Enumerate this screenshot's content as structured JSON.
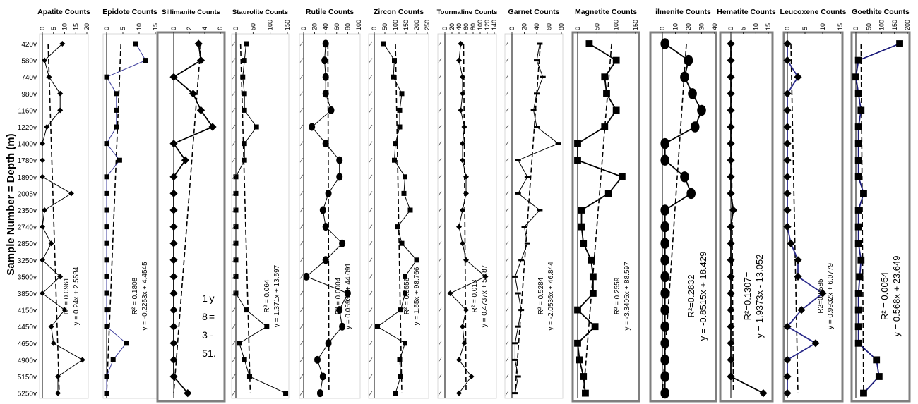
{
  "figure": {
    "ylabel": "Sample Number = Depth (m)",
    "samples": [
      "420v",
      "580v",
      "740v",
      "980v",
      "1160v",
      "1220v",
      "1400v",
      "1780v",
      "1890v",
      "2005v",
      "2350v",
      "2740v",
      "2850v",
      "3250v",
      "3500v",
      "3850v",
      "4150v",
      "4450v",
      "4650v",
      "4900v",
      "5150v",
      "5250v"
    ]
  },
  "chart_data": [
    {
      "type": "line",
      "title": "Apatite Counts",
      "xlim": [
        0,
        20
      ],
      "ticks": [
        "0",
        "5",
        "10",
        "15",
        "20"
      ],
      "values": [
        9,
        1,
        3,
        8,
        8,
        2,
        0,
        0,
        0,
        13,
        1,
        0,
        4,
        0,
        8,
        0,
        10,
        4,
        5,
        18,
        7,
        7
      ],
      "trend": {
        "x1": 2.58,
        "x2": 7.6
      },
      "equation": "y = 0.24x + 2.5584",
      "r2": "R² = 0.0961",
      "color": "#000000",
      "marker": "diamond",
      "boxed": false
    },
    {
      "type": "line",
      "title": "Epidote Counts",
      "xlim": [
        0,
        15
      ],
      "ticks": [
        "0",
        "5",
        "10",
        "15"
      ],
      "values": [
        9,
        12,
        0,
        3,
        3,
        3,
        0,
        4,
        0,
        0,
        0,
        0,
        0,
        0,
        0,
        0,
        0,
        0,
        6,
        2,
        0,
        0
      ],
      "trend": {
        "x1": 4.4,
        "x2": 0.0
      },
      "equation": "y = -0.2253x + 4.4545",
      "r2": "R² = 0.1808",
      "color": "#3a3a9a",
      "marker": "square",
      "boxed": false
    },
    {
      "type": "line",
      "title": "Sillimanite Counts",
      "xlim": [
        0,
        6
      ],
      "ticks": [
        "0",
        "2",
        "4",
        "6"
      ],
      "values": [
        3.2,
        3.5,
        0,
        2.5,
        3.5,
        5,
        0,
        1.5,
        0,
        0,
        0,
        0,
        0,
        0,
        0,
        0,
        0,
        0,
        0,
        0,
        0,
        1.8
      ],
      "trend": {
        "x1": 3.5,
        "x2": 0.0
      },
      "equation": "",
      "r2": "",
      "color": "#000000",
      "marker": "diamond",
      "boxed": true,
      "eqFragments": [
        "y",
        "=",
        "-",
        "1.",
        "1",
        "8",
        "3",
        "5"
      ]
    },
    {
      "type": "line",
      "title": "Staurolite Counts",
      "xlim": [
        0,
        150
      ],
      "ticks": [
        "0",
        "50",
        "100",
        "150"
      ],
      "values": [
        30,
        25,
        20,
        25,
        25,
        60,
        25,
        25,
        0,
        0,
        0,
        0,
        0,
        0,
        0,
        0,
        30,
        90,
        10,
        25,
        40,
        145
      ],
      "trend": {
        "x1": 13.6,
        "x2": 42
      },
      "equation": "y = 1.371x + 13.597",
      "r2": "R² = 0.064",
      "color": "#000000",
      "marker": "square",
      "boxed": false
    },
    {
      "type": "line",
      "title": "Rutile Counts",
      "xlim": [
        0,
        100
      ],
      "ticks": [
        "0",
        "20",
        "40",
        "60",
        "80",
        "100"
      ],
      "values": [
        40,
        38,
        40,
        40,
        50,
        15,
        40,
        65,
        65,
        45,
        35,
        40,
        70,
        40,
        5,
        80,
        65,
        70,
        45,
        25,
        35,
        30
      ],
      "trend": {
        "x1": 44,
        "x2": 46
      },
      "equation": "y = 0.0593x + 44.091",
      "r2": "R² = 0.0004",
      "color": "#000000",
      "marker": "circle",
      "boxed": false
    },
    {
      "type": "line",
      "title": "Zircon Counts",
      "xlim": [
        0,
        250
      ],
      "ticks": [
        "0",
        "50",
        "100",
        "150",
        "200",
        "250"
      ],
      "values": [
        45,
        95,
        90,
        130,
        120,
        120,
        100,
        95,
        145,
        140,
        170,
        110,
        130,
        200,
        145,
        145,
        125,
        15,
        145,
        120,
        125,
        100
      ],
      "trend": {
        "x1": 100,
        "x2": 130
      },
      "equation": "y = 1.55x + 98.766",
      "r2": "R² = 0.0556",
      "color": "#000000",
      "marker": "square",
      "boxed": false
    },
    {
      "type": "line",
      "title": "Tourmaline Counts",
      "xlim": [
        0,
        140
      ],
      "ticks": [
        "0",
        "20",
        "40",
        "60",
        "80",
        "100",
        "120",
        "140"
      ],
      "values": [
        45,
        40,
        50,
        50,
        45,
        55,
        50,
        50,
        60,
        60,
        50,
        40,
        50,
        60,
        115,
        15,
        60,
        50,
        55,
        40,
        75,
        40
      ],
      "trend": {
        "x1": 53,
        "x2": 60
      },
      "equation": "y = 0.4737x + 52.87",
      "r2": "R² = 0.013",
      "color": "#000000",
      "marker": "diamond",
      "boxed": false
    },
    {
      "type": "line",
      "title": "Garnet Counts",
      "xlim": [
        0,
        80
      ],
      "ticks": [
        "0",
        "20",
        "40",
        "60",
        "80"
      ],
      "values": [
        45,
        40,
        50,
        40,
        35,
        40,
        75,
        10,
        25,
        10,
        45,
        20,
        25,
        15,
        5,
        10,
        15,
        10,
        5,
        5,
        10,
        5
      ],
      "trend": {
        "x1": 46,
        "x2": 5
      },
      "equation": "y = -2.0536x + 46.844",
      "r2": "R² = 0.5284",
      "color": "#000000",
      "marker": "dash",
      "boxed": false
    },
    {
      "type": "line",
      "title": "Magnetite Counts",
      "xlim": [
        0,
        150
      ],
      "ticks": [
        "0",
        "50",
        "100",
        "150"
      ],
      "values": [
        30,
        100,
        70,
        75,
        100,
        70,
        0,
        0,
        115,
        80,
        10,
        10,
        15,
        35,
        40,
        40,
        0,
        45,
        0,
        5,
        15,
        20
      ],
      "trend": {
        "x1": 88,
        "x2": 15
      },
      "equation": "y = -3.3405x + 88.597",
      "r2": "R² = 0.2559",
      "color": "#000000",
      "marker": "square",
      "boxed": true
    },
    {
      "type": "line",
      "title": "ilmenite Counts",
      "xlim": [
        0,
        40
      ],
      "ticks": [
        "0",
        "10",
        "20",
        "30",
        "40"
      ],
      "values": [
        2,
        20,
        17,
        23,
        30,
        25,
        2,
        2,
        17,
        22,
        2,
        2,
        2,
        2,
        2,
        2,
        2,
        2,
        2,
        2,
        2,
        2
      ],
      "trend": {
        "x1": 18.4,
        "x2": 0
      },
      "equation": "y = -0.8515x + 18.429",
      "r2": "R²=0.2832",
      "color": "#000000",
      "marker": "circle",
      "boxed": true
    },
    {
      "type": "line",
      "title": "Hematite Counts",
      "xlim": [
        0,
        15
      ],
      "ticks": [
        "0",
        "5",
        "10",
        "15"
      ],
      "values": [
        0,
        0,
        0,
        0,
        0,
        0,
        0,
        0,
        0,
        0,
        1,
        0,
        0,
        0,
        0,
        0,
        0,
        0,
        0,
        0,
        0,
        13
      ],
      "trend": {
        "x1": 0,
        "x2": 1
      },
      "equation": "y = 1.9373x - 13.052",
      "r2": "R²=0.1307=",
      "color": "#000000",
      "marker": "diamond",
      "boxed": true
    },
    {
      "type": "line",
      "title": "Leucoxene Counts",
      "xlim": [
        0,
        15
      ],
      "ticks": [
        "0",
        "5",
        "10",
        "15"
      ],
      "values": [
        0,
        0,
        3,
        0,
        0,
        0,
        0,
        0,
        0,
        0,
        0,
        0,
        1,
        3,
        3,
        10,
        4,
        0,
        8,
        0,
        0,
        0
      ],
      "trend": {
        "x1": 1,
        "x2": 3
      },
      "equation": "y = 0.9932x + 6.0779",
      "r2": "R2=0.0585",
      "color": "#2a2a8a",
      "marker": "diamond",
      "boxed": true
    },
    {
      "type": "line",
      "title": "Goethite Counts",
      "xlim": [
        0,
        200
      ],
      "ticks": [
        "0",
        "50",
        "100",
        "150",
        "200"
      ],
      "values": [
        170,
        10,
        0,
        10,
        20,
        10,
        10,
        10,
        10,
        30,
        10,
        10,
        10,
        20,
        15,
        10,
        10,
        10,
        10,
        80,
        90,
        30
      ],
      "trend": {
        "x1": 20,
        "x2": 30
      },
      "equation": "y = 0.568x + 23.649",
      "r2": "R² = 0.0054",
      "color": "#1a1a7a",
      "marker": "square",
      "boxed": true
    }
  ]
}
